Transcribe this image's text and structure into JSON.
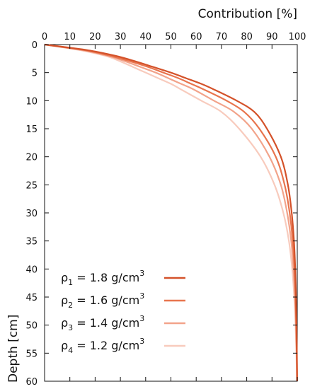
{
  "chart_data": {
    "type": "line",
    "xlabel": "Contribution [%]",
    "ylabel": "Depth [cm]",
    "xlim": [
      0,
      100
    ],
    "ylim": [
      0,
      60
    ],
    "y_inverted": true,
    "x_axis_position": "top",
    "x_ticks": [
      0,
      10,
      20,
      30,
      40,
      50,
      60,
      70,
      80,
      90,
      100
    ],
    "y_ticks": [
      0,
      5,
      10,
      15,
      20,
      25,
      30,
      35,
      40,
      45,
      50,
      55,
      60
    ],
    "legend_position": "bottom-left",
    "grid": false,
    "series": [
      {
        "symbol": "ρ",
        "sub": "1",
        "text": " = 1.8 g/cm",
        "sup": "3",
        "color": "#d4522a",
        "depth": [
          0,
          1,
          2,
          3,
          4,
          5,
          6,
          7,
          8,
          10,
          12,
          15,
          20,
          25,
          30,
          35,
          40,
          45,
          50,
          55,
          60
        ],
        "contribution": [
          0,
          17,
          28,
          36,
          43,
          50,
          56,
          62,
          67,
          76,
          83,
          88,
          93.5,
          96.3,
          97.8,
          98.7,
          99.2,
          99.5,
          99.7,
          99.85,
          99.95
        ]
      },
      {
        "symbol": "ρ",
        "sub": "2",
        "text": " = 1.6 g/cm",
        "sup": "3",
        "color": "#e8754e",
        "depth": [
          0,
          1,
          2,
          3,
          4,
          5,
          6,
          7,
          8,
          10,
          12,
          15,
          20,
          25,
          30,
          35,
          40,
          45,
          50,
          55,
          60
        ],
        "contribution": [
          0,
          16,
          26,
          34,
          41,
          47,
          53,
          58,
          63,
          72,
          79,
          85,
          91.5,
          95,
          97,
          98.2,
          98.9,
          99.3,
          99.6,
          99.8,
          99.92
        ]
      },
      {
        "symbol": "ρ",
        "sub": "3",
        "text": " = 1.4 g/cm",
        "sup": "3",
        "color": "#f2a38a",
        "depth": [
          0,
          1,
          2,
          3,
          4,
          5,
          6,
          7,
          8,
          10,
          12,
          15,
          20,
          25,
          30,
          35,
          40,
          45,
          50,
          55,
          60
        ],
        "contribution": [
          0,
          15,
          25,
          32,
          38,
          44,
          49,
          54,
          59,
          67,
          75,
          82,
          89,
          93.5,
          96,
          97.6,
          98.5,
          99.1,
          99.5,
          99.75,
          99.9
        ]
      },
      {
        "symbol": "ρ",
        "sub": "4",
        "text": " = 1.2 g/cm",
        "sup": "3",
        "color": "#f8cbbd",
        "depth": [
          0,
          1,
          2,
          3,
          4,
          5,
          6,
          7,
          8,
          10,
          12,
          15,
          20,
          25,
          30,
          35,
          40,
          45,
          50,
          55,
          60
        ],
        "contribution": [
          0,
          14,
          24,
          30,
          35,
          40,
          45,
          50,
          54,
          62,
          70,
          77,
          85.5,
          91,
          94.5,
          96.7,
          98,
          98.8,
          99.3,
          99.65,
          99.85
        ]
      }
    ]
  }
}
